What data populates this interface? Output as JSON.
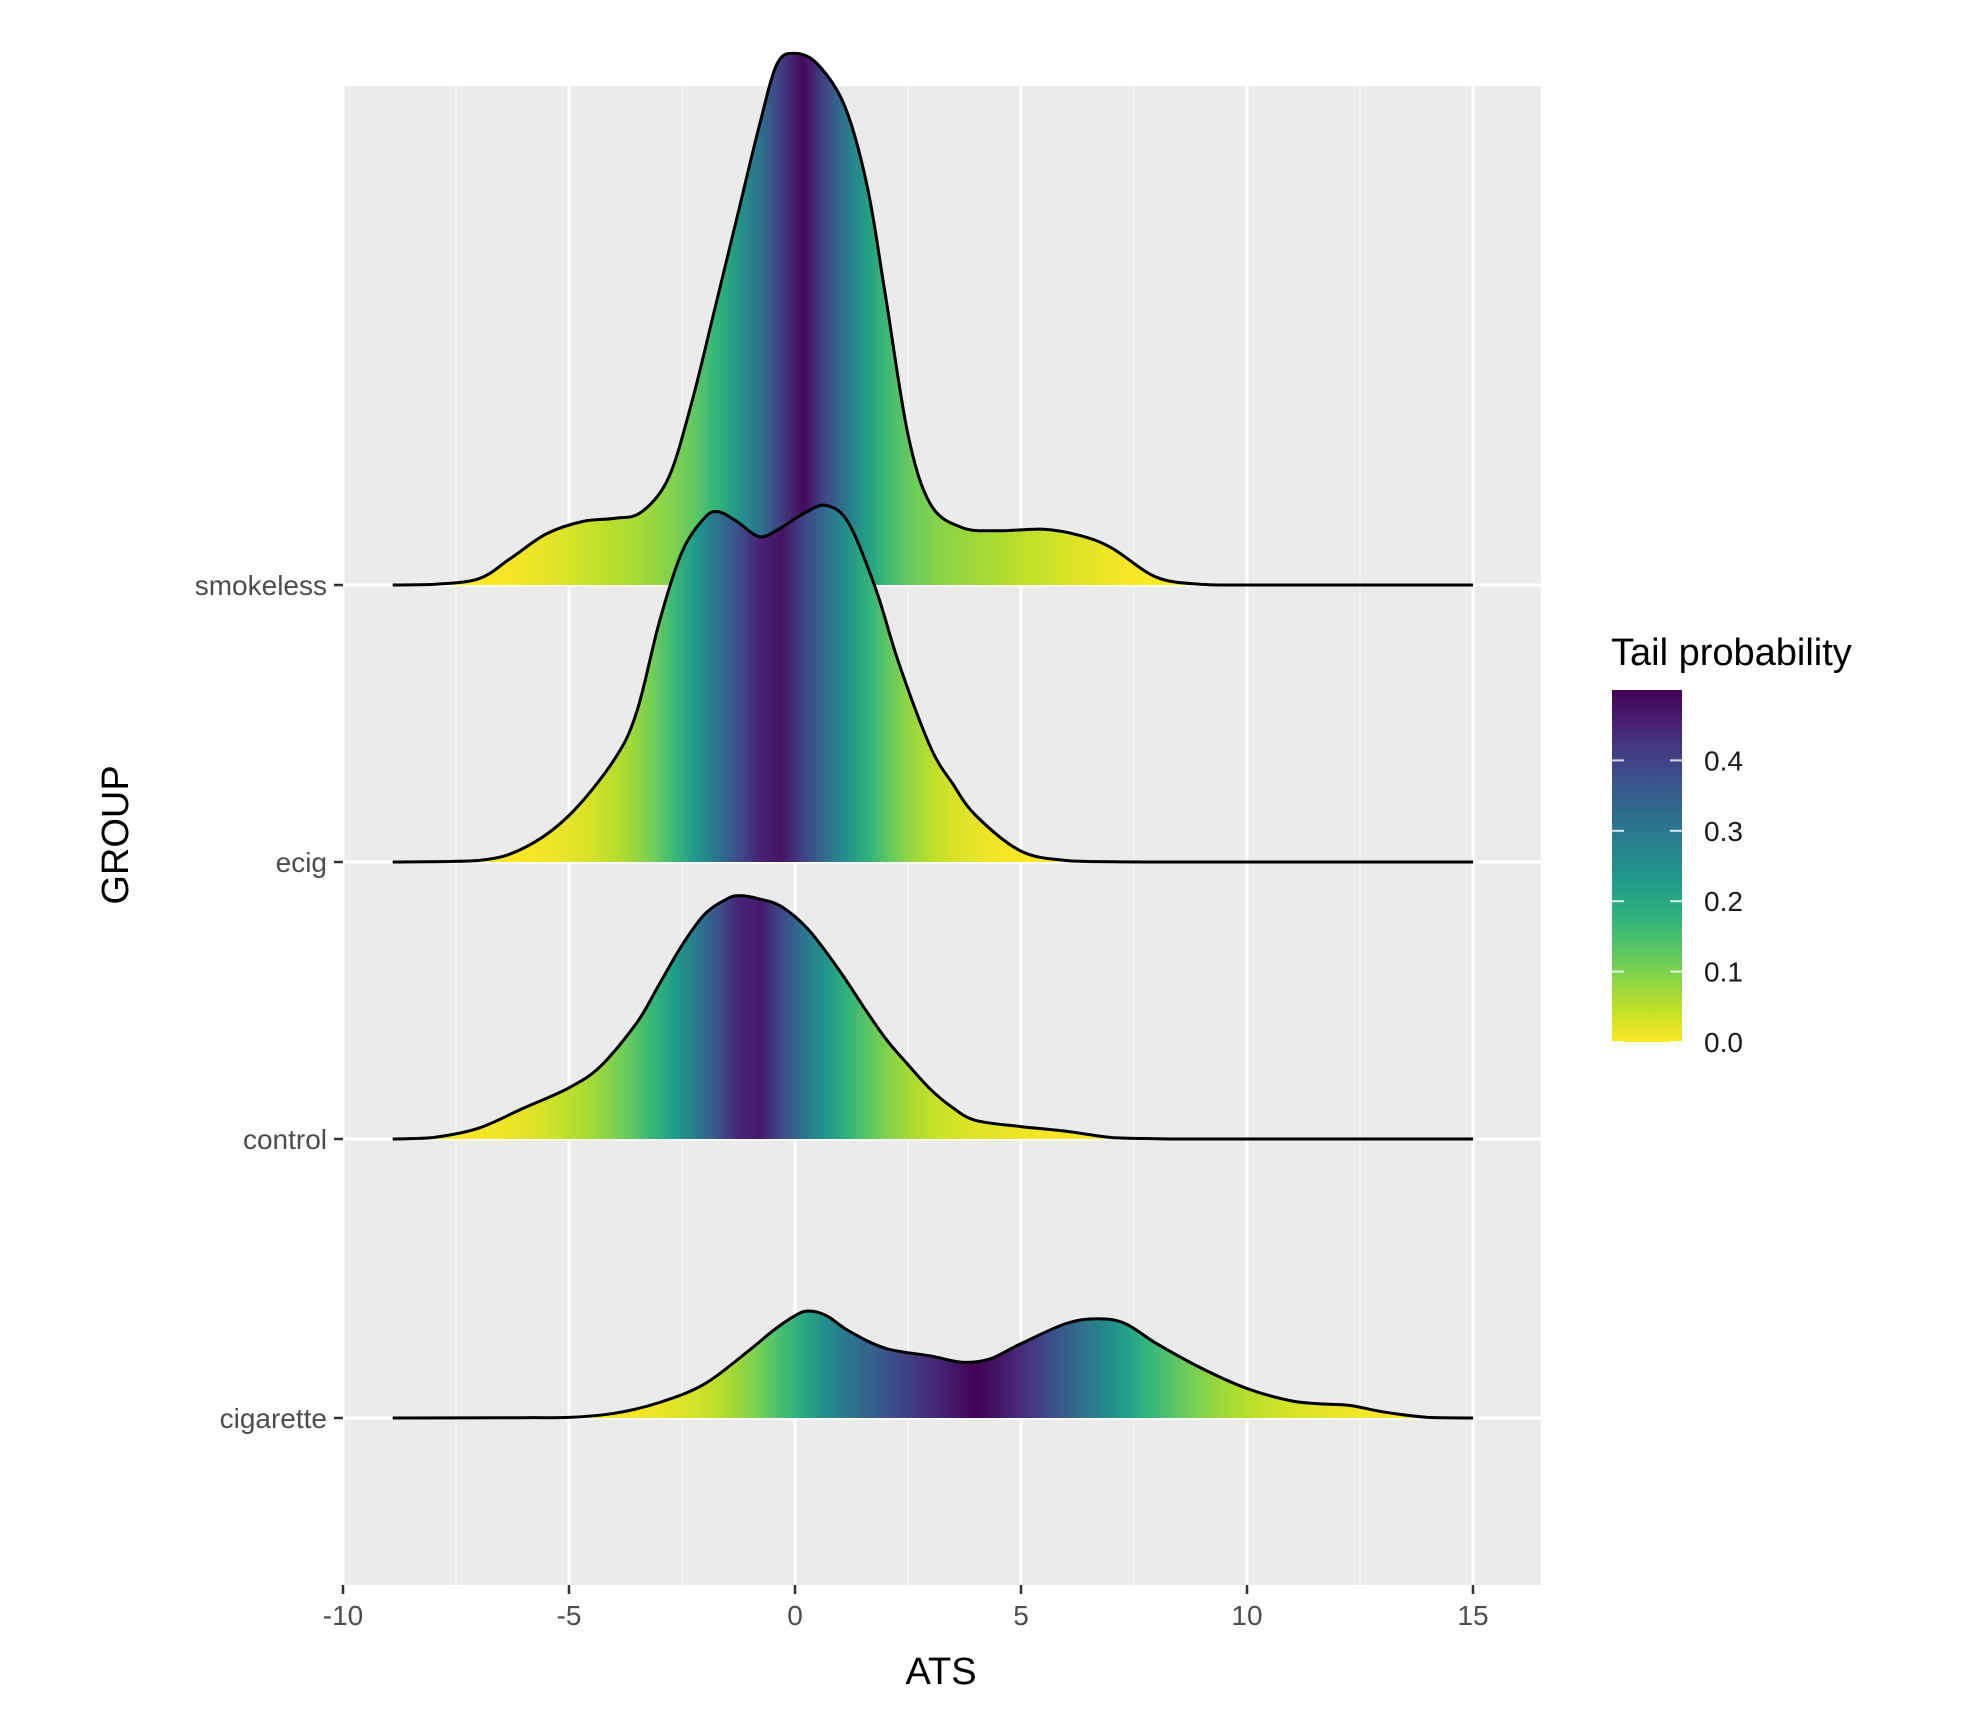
{
  "chart_data": {
    "type": "ridgeline",
    "xlabel": "ATS",
    "ylabel": "GROUP",
    "xlim": [
      -10,
      16.2
    ],
    "x_ticks": [
      -10,
      -5,
      0,
      5,
      10,
      15
    ],
    "x_tick_labels": [
      "-10",
      "-5",
      "0",
      "5",
      "10",
      "15"
    ],
    "categories": [
      "cigarette",
      "control",
      "ecig",
      "smokeless"
    ],
    "grid": true,
    "background": "#ebebeb",
    "legend": {
      "title": "Tail probability",
      "position": "right",
      "colorscale": "viridis (reversed)",
      "ticks": [
        0.0,
        0.1,
        0.2,
        0.3,
        0.4
      ],
      "tick_labels": [
        "0.0",
        "0.1",
        "0.2",
        "0.3",
        "0.4"
      ],
      "range": [
        0,
        0.5
      ]
    },
    "series": [
      {
        "name": "cigarette",
        "median": 3.5,
        "points": [
          [
            -8.9,
            0
          ],
          [
            -6,
            0.002
          ],
          [
            -5,
            0.004
          ],
          [
            -4,
            0.03
          ],
          [
            -3,
            0.1
          ],
          [
            -2,
            0.22
          ],
          [
            -1,
            0.44
          ],
          [
            -0.5,
            0.56
          ],
          [
            0,
            0.66
          ],
          [
            0.3,
            0.69
          ],
          [
            0.7,
            0.66
          ],
          [
            1.2,
            0.56
          ],
          [
            2,
            0.45
          ],
          [
            3,
            0.4
          ],
          [
            3.7,
            0.36
          ],
          [
            4.3,
            0.38
          ],
          [
            5,
            0.48
          ],
          [
            6,
            0.61
          ],
          [
            6.7,
            0.64
          ],
          [
            7.3,
            0.61
          ],
          [
            8,
            0.48
          ],
          [
            9,
            0.32
          ],
          [
            10,
            0.19
          ],
          [
            11,
            0.11
          ],
          [
            11.7,
            0.09
          ],
          [
            12.3,
            0.08
          ],
          [
            13,
            0.04
          ],
          [
            14,
            0.004
          ],
          [
            15,
            0
          ]
        ]
      },
      {
        "name": "control",
        "median": -1.1,
        "points": [
          [
            -8.9,
            0
          ],
          [
            -8,
            0.01
          ],
          [
            -7,
            0.07
          ],
          [
            -6,
            0.2
          ],
          [
            -5,
            0.33
          ],
          [
            -4.3,
            0.47
          ],
          [
            -3.5,
            0.75
          ],
          [
            -3,
            1.0
          ],
          [
            -2.5,
            1.25
          ],
          [
            -2,
            1.45
          ],
          [
            -1.5,
            1.55
          ],
          [
            -1.2,
            1.57
          ],
          [
            -0.8,
            1.55
          ],
          [
            -0.3,
            1.5
          ],
          [
            0.3,
            1.35
          ],
          [
            1,
            1.08
          ],
          [
            1.5,
            0.86
          ],
          [
            2,
            0.65
          ],
          [
            2.5,
            0.48
          ],
          [
            3,
            0.32
          ],
          [
            3.5,
            0.2
          ],
          [
            4,
            0.12
          ],
          [
            5,
            0.08
          ],
          [
            6,
            0.05
          ],
          [
            7,
            0.01
          ],
          [
            8,
            0.002
          ],
          [
            9,
            0
          ],
          [
            15,
            0
          ]
        ]
      },
      {
        "name": "ecig",
        "median": -0.3,
        "points": [
          [
            -8.9,
            0
          ],
          [
            -7,
            0.01
          ],
          [
            -6,
            0.09
          ],
          [
            -5,
            0.3
          ],
          [
            -4,
            0.66
          ],
          [
            -3.5,
            0.97
          ],
          [
            -3,
            1.55
          ],
          [
            -2.5,
            2.0
          ],
          [
            -2,
            2.22
          ],
          [
            -1.7,
            2.26
          ],
          [
            -1.3,
            2.2
          ],
          [
            -0.8,
            2.1
          ],
          [
            -0.4,
            2.14
          ],
          [
            0.2,
            2.25
          ],
          [
            0.7,
            2.3
          ],
          [
            1.2,
            2.18
          ],
          [
            1.8,
            1.75
          ],
          [
            2.3,
            1.28
          ],
          [
            3,
            0.74
          ],
          [
            3.5,
            0.5
          ],
          [
            4,
            0.3
          ],
          [
            5,
            0.07
          ],
          [
            6,
            0.01
          ],
          [
            7,
            0.002
          ],
          [
            8,
            0
          ],
          [
            15,
            0
          ]
        ]
      },
      {
        "name": "smokeless",
        "median": 0.2,
        "points": [
          [
            -8.9,
            0
          ],
          [
            -8,
            0.004
          ],
          [
            -7,
            0.04
          ],
          [
            -6.3,
            0.17
          ],
          [
            -5.5,
            0.33
          ],
          [
            -4.7,
            0.41
          ],
          [
            -4,
            0.43
          ],
          [
            -3.4,
            0.47
          ],
          [
            -2.8,
            0.69
          ],
          [
            -2.3,
            1.16
          ],
          [
            -1.8,
            1.75
          ],
          [
            -1.3,
            2.35
          ],
          [
            -0.8,
            2.95
          ],
          [
            -0.4,
            3.36
          ],
          [
            0,
            3.43
          ],
          [
            0.5,
            3.36
          ],
          [
            1.1,
            3.09
          ],
          [
            1.6,
            2.57
          ],
          [
            2,
            1.87
          ],
          [
            2.5,
            0.97
          ],
          [
            3,
            0.52
          ],
          [
            3.7,
            0.37
          ],
          [
            4.5,
            0.35
          ],
          [
            5.5,
            0.36
          ],
          [
            6.3,
            0.32
          ],
          [
            7,
            0.24
          ],
          [
            8,
            0.05
          ],
          [
            9,
            0.004
          ],
          [
            10,
            0
          ],
          [
            15,
            0
          ]
        ]
      }
    ]
  }
}
